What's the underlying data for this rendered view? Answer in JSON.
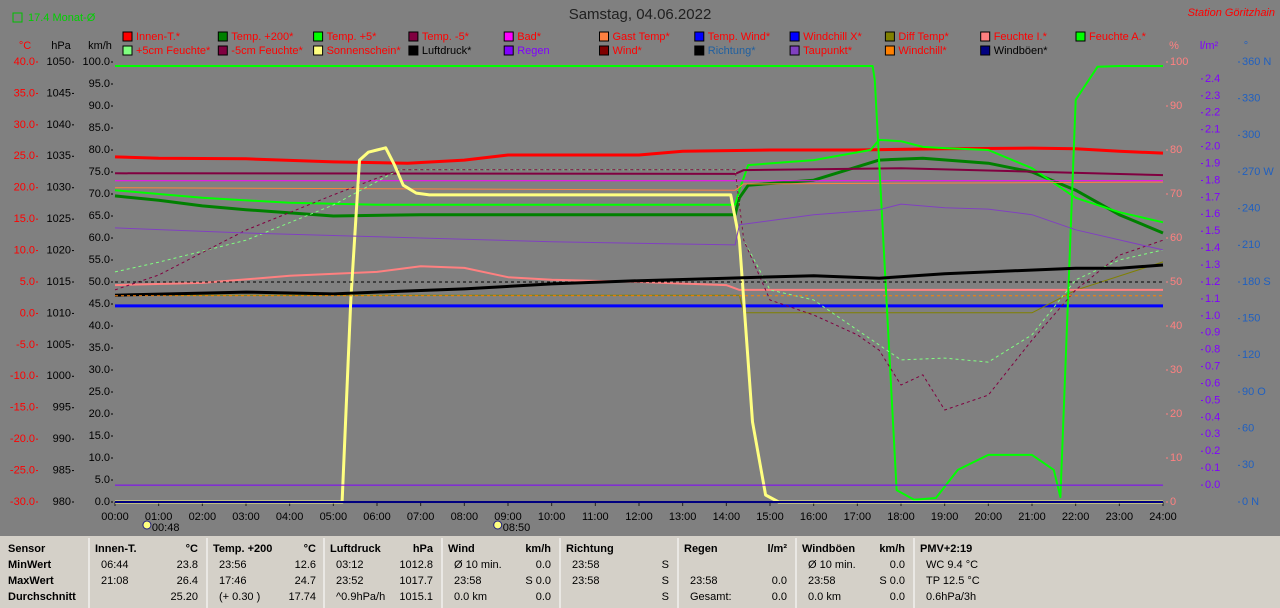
{
  "chart_data": {
    "type": "line",
    "title": "Samstag, 04.06.2022",
    "station": "Station Göritzhain",
    "month_average": "17.4 Monat-Ø",
    "xlim": [
      0,
      24
    ],
    "xticks": [
      {
        "value": 0,
        "label": "00:00"
      },
      {
        "value": 1,
        "label": "01:00"
      },
      {
        "value": 2,
        "label": "02:00"
      },
      {
        "value": 3,
        "label": "03:00"
      },
      {
        "value": 4,
        "label": "04:00"
      },
      {
        "value": 5,
        "label": "05:00"
      },
      {
        "value": 6,
        "label": "06:00"
      },
      {
        "value": 7,
        "label": "07:00"
      },
      {
        "value": 8,
        "label": "08:00"
      },
      {
        "value": 9,
        "label": "09:00"
      },
      {
        "value": 10,
        "label": "10:00"
      },
      {
        "value": 11,
        "label": "11:00"
      },
      {
        "value": 12,
        "label": "12:00"
      },
      {
        "value": 13,
        "label": "13:00"
      },
      {
        "value": 14,
        "label": "14:00"
      },
      {
        "value": 15,
        "label": "15:00"
      },
      {
        "value": 16,
        "label": "16:00"
      },
      {
        "value": 17,
        "label": "17:00"
      },
      {
        "value": 18,
        "label": "18:00"
      },
      {
        "value": 19,
        "label": "19:00"
      },
      {
        "value": 20,
        "label": "20:00"
      },
      {
        "value": 21,
        "label": "21:00"
      },
      {
        "value": 22,
        "label": "22:00"
      },
      {
        "value": 23,
        "label": "23:00"
      },
      {
        "value": 24,
        "label": "24:00"
      }
    ],
    "events": [
      {
        "value": 0.8,
        "label": "00:48"
      },
      {
        "value": 8.833,
        "label": "08:50"
      }
    ],
    "axes": [
      {
        "unit": "°C",
        "side": "left",
        "color": "#ff0000",
        "lim": [
          -30,
          40
        ],
        "ticks": [
          {
            "value": 40,
            "label": "40.0"
          },
          {
            "value": 35,
            "label": "35.0"
          },
          {
            "value": 30,
            "label": "30.0"
          },
          {
            "value": 25,
            "label": "25.0"
          },
          {
            "value": 20,
            "label": "20.0"
          },
          {
            "value": 15,
            "label": "15.0"
          },
          {
            "value": 10,
            "label": "10.0"
          },
          {
            "value": 5,
            "label": "5.0"
          },
          {
            "value": 0,
            "label": "0.0"
          },
          {
            "value": -5,
            "label": "-5.0"
          },
          {
            "value": -10,
            "label": "-10.0"
          },
          {
            "value": -15,
            "label": "-15.0"
          },
          {
            "value": -20,
            "label": "-20.0"
          },
          {
            "value": -25,
            "label": "-25.0"
          },
          {
            "value": -30,
            "label": "-30.0"
          }
        ]
      },
      {
        "unit": "hPa",
        "side": "left",
        "color": "#000000",
        "lim": [
          980,
          1050
        ],
        "ticks": [
          1050,
          1045,
          1040,
          1035,
          1030,
          1025,
          1020,
          1015,
          1010,
          1005,
          1000,
          995,
          990,
          985,
          980
        ]
      },
      {
        "unit": "km/h",
        "side": "left",
        "color": "#000000",
        "lim": [
          0,
          100
        ],
        "ticks": [
          {
            "value": 100,
            "label": "100.0"
          },
          {
            "value": 95,
            "label": "95.0"
          },
          {
            "value": 90,
            "label": "90.0"
          },
          {
            "value": 85,
            "label": "85.0"
          },
          {
            "value": 80,
            "label": "80.0"
          },
          {
            "value": 75,
            "label": "75.0"
          },
          {
            "value": 70,
            "label": "70.0"
          },
          {
            "value": 65,
            "label": "65.0"
          },
          {
            "value": 60,
            "label": "60.0"
          },
          {
            "value": 55,
            "label": "55.0"
          },
          {
            "value": 50,
            "label": "50.0"
          },
          {
            "value": 45,
            "label": "45.0"
          },
          {
            "value": 40,
            "label": "40.0"
          },
          {
            "value": 35,
            "label": "35.0"
          },
          {
            "value": 30,
            "label": "30.0"
          },
          {
            "value": 25,
            "label": "25.0"
          },
          {
            "value": 20,
            "label": "20.0"
          },
          {
            "value": 15,
            "label": "15.0"
          },
          {
            "value": 10,
            "label": "10.0"
          },
          {
            "value": 5,
            "label": "5.0"
          },
          {
            "value": 0,
            "label": "0.0"
          }
        ]
      },
      {
        "unit": "%",
        "side": "right",
        "color": "#ff8080",
        "lim": [
          0,
          100
        ],
        "ticks": [
          100,
          90,
          80,
          70,
          60,
          50,
          40,
          30,
          20,
          10,
          0
        ]
      },
      {
        "unit": "l/m²",
        "side": "right",
        "color": "#8000ff",
        "lim": [
          -0.1,
          2.5
        ],
        "ticks": [
          2.4,
          2.3,
          2.2,
          2.1,
          {
            "value": 2,
            "label": "2.0"
          },
          1.9,
          1.8,
          1.7,
          1.6,
          1.5,
          1.4,
          1.3,
          1.2,
          1.1,
          {
            "value": 1,
            "label": "1.0"
          },
          0.9,
          0.8,
          0.7,
          0.6,
          0.5,
          0.4,
          0.3,
          0.2,
          0.1,
          {
            "value": 0,
            "label": "0.0"
          }
        ]
      },
      {
        "unit": "°",
        "side": "right",
        "color": "#2060c0",
        "lim": [
          0,
          360
        ],
        "ticks": [
          {
            "value": 360,
            "label": "360 N"
          },
          330,
          300,
          {
            "value": 270,
            "label": "270 W"
          },
          240,
          210,
          {
            "value": 180,
            "label": "180 S"
          },
          150,
          120,
          {
            "value": 90,
            "label": "90 O"
          },
          60,
          30,
          {
            "value": 0,
            "label": "0 N"
          }
        ]
      }
    ],
    "series": [
      {
        "name": "Innen-T.*",
        "color": "#ff0000",
        "text_color": "#ff0000",
        "axis": "°C",
        "width": 3,
        "x": [
          0,
          1,
          3,
          5,
          6.7,
          8,
          9,
          12,
          13,
          15,
          17,
          19,
          21,
          22,
          23,
          24
        ],
        "values": [
          24.9,
          24.7,
          24.6,
          24.1,
          23.9,
          24.4,
          25.2,
          25.2,
          25.8,
          26.0,
          26.0,
          26.2,
          26.3,
          26.2,
          25.8,
          25.5
        ]
      },
      {
        "name": "Temp. +200*",
        "color": "#008000",
        "text_color": "#ff0000",
        "axis": "°C",
        "width": 3,
        "x": [
          0,
          1,
          2,
          3,
          5,
          7,
          10,
          14.2,
          14.3,
          14.5,
          16,
          17.5,
          18.5,
          20,
          21,
          22,
          23,
          24
        ],
        "values": [
          18.7,
          18.0,
          17.1,
          16.5,
          15.5,
          15.7,
          15.7,
          15.7,
          18.4,
          20.4,
          21.2,
          24.4,
          24.7,
          23.9,
          22.5,
          19.6,
          15.7,
          12.8
        ]
      },
      {
        "name": "Temp. +5*",
        "color": "#00ff00",
        "text_color": "#ff0000",
        "axis": "°C",
        "width": 2,
        "x": [
          0,
          2,
          4,
          6,
          10,
          14.2,
          14.3,
          14.5,
          16,
          17.3,
          17.5,
          18,
          18.5,
          19,
          20,
          21,
          22,
          23,
          24
        ],
        "values": [
          19.6,
          18.4,
          17.6,
          17.3,
          17.3,
          17.3,
          19.6,
          23.6,
          24.4,
          26.0,
          27.6,
          27.4,
          26.5,
          26.3,
          26.0,
          23.1,
          18.4,
          16.1,
          14.5
        ]
      },
      {
        "name": "Temp. -5*",
        "color": "#800040",
        "text_color": "#ff0000",
        "axis": "°C",
        "width": 2,
        "x": [
          0,
          14.2,
          14.4,
          18,
          24
        ],
        "values": [
          22.3,
          22.2,
          22.8,
          23.1,
          22.0
        ]
      },
      {
        "name": "Bad*",
        "color": "#ff00ff",
        "text_color": "#ff0000",
        "axis": "°C",
        "width": 1,
        "x": [
          0,
          24
        ],
        "values": [
          21.1,
          21.1
        ]
      },
      {
        "name": "Gast Temp*",
        "color": "#ff8040",
        "text_color": "#ff0000",
        "axis": "°C",
        "width": 1,
        "x": [
          0,
          14.2,
          14.4,
          24
        ],
        "values": [
          20.0,
          19.6,
          20.6,
          20.9
        ]
      },
      {
        "name": "Temp. Wind*",
        "color": "#0000ff",
        "text_color": "#ff0000",
        "axis": "°C",
        "width": 3,
        "x": [
          0,
          24
        ],
        "values": [
          1.2,
          1.2
        ]
      },
      {
        "name": "Windchill X*",
        "color": "#0000ff",
        "text_color": "#ff0000",
        "axis": "°C",
        "width": 1,
        "x": [
          0,
          24
        ],
        "values": [
          1.2,
          1.2
        ]
      },
      {
        "name": "Diff Temp*",
        "color": "#808000",
        "text_color": "#ff0000",
        "axis": "°C",
        "width": 1,
        "x": [
          0,
          14.3,
          14.4,
          21,
          22,
          24
        ],
        "values": [
          2.9,
          2.9,
          0.1,
          0.1,
          3.7,
          8.2
        ]
      },
      {
        "name": "Feuchte I.*",
        "color": "#ff8080",
        "text_color": "#ff0000",
        "axis": "%",
        "width": 2,
        "x": [
          0,
          2,
          4,
          6,
          7,
          8,
          9,
          10,
          12,
          14,
          14.3,
          24
        ],
        "values": [
          49.3,
          49.8,
          51.4,
          52.3,
          53.6,
          53.2,
          51.1,
          50.5,
          50.0,
          49.3,
          48.2,
          48.2
        ]
      },
      {
        "name": "Feuchte A.*",
        "color": "#00ff00",
        "text_color": "#ff0000",
        "axis": "%",
        "width": 2,
        "x": [
          0,
          17.35,
          17.4,
          17.9,
          18.3,
          18.8,
          19.3,
          20,
          21,
          21.5,
          21.65,
          22,
          22.5,
          23,
          24
        ],
        "values": [
          99.1,
          99.1,
          95.9,
          2.7,
          0.5,
          0.9,
          7.3,
          10.7,
          10.7,
          7.3,
          1.1,
          91.4,
          98.9,
          99.1,
          99.1
        ]
      },
      {
        "name": "+5cm Feuchte*",
        "color": "#80ff80",
        "text_color": "#ff0000",
        "axis": "%",
        "width": 1,
        "dashed": true,
        "x": [
          0,
          1,
          3,
          5,
          6.5,
          14.2,
          14.4,
          15,
          16,
          17,
          18,
          19,
          20,
          21,
          22,
          23,
          24
        ],
        "values": [
          52.3,
          54.5,
          59.5,
          67.5,
          75.5,
          75.5,
          59.5,
          48.2,
          45.9,
          39.1,
          32.3,
          32.7,
          31.8,
          38.0,
          50.5,
          55.0,
          57.3
        ]
      },
      {
        "name": "-5cm Feuchte*",
        "color": "#800040",
        "text_color": "#ff0000",
        "axis": "%",
        "width": 1,
        "dashed": true,
        "x": [
          0,
          1,
          3,
          5,
          6.5,
          14.2,
          14.4,
          15,
          16,
          17,
          17.5,
          18,
          18.5,
          19,
          20,
          21,
          22,
          23,
          24
        ],
        "values": [
          48.2,
          51.6,
          61.8,
          69.8,
          75.5,
          75.5,
          59.5,
          45.9,
          42.5,
          38.0,
          34.5,
          26.6,
          28.9,
          20.9,
          24.3,
          36.8,
          48.2,
          56.1,
          59.5
        ]
      },
      {
        "name": "Sonnenschein*",
        "color": "#ffff80",
        "text_color": "#ff0000",
        "axis": "%",
        "width": 3,
        "x": [
          0,
          5.2,
          5.4,
          5.6,
          5.8,
          6.0,
          6.2,
          6.4,
          6.6,
          6.9,
          7.2,
          14.1,
          14.3,
          14.6,
          14.9,
          15.2,
          24
        ],
        "values": [
          0,
          0,
          45.9,
          77.7,
          79.5,
          80.0,
          80.5,
          76.6,
          72.0,
          70.2,
          69.8,
          69.8,
          59.5,
          18.2,
          1.6,
          0,
          0
        ]
      },
      {
        "name": "Luftdruck*",
        "color": "#000000",
        "text_color": "#000000",
        "axis": "hPa",
        "width": 3,
        "x": [
          0,
          3,
          5,
          6,
          8,
          10,
          12,
          14,
          16,
          17.5,
          19,
          20,
          22,
          23,
          24
        ],
        "values": [
          1012.9,
          1013.4,
          1013.1,
          1013.4,
          1013.9,
          1014.7,
          1015.2,
          1015.6,
          1016.0,
          1015.6,
          1016.3,
          1016.6,
          1017.2,
          1017.2,
          1017.7
        ]
      },
      {
        "name": "Regen",
        "color": "#8000ff",
        "text_color": "#8000ff",
        "axis": "l/m²",
        "width": 1,
        "x": [
          0,
          24
        ],
        "values": [
          0,
          0
        ]
      },
      {
        "name": "Wind*",
        "color": "#800000",
        "text_color": "#ff0000",
        "axis": "km/h",
        "width": 2,
        "x": [
          0,
          24
        ],
        "values": [
          0,
          0
        ]
      },
      {
        "name": "Richtung*",
        "color": "#000000",
        "text_color": "#2060a0",
        "axis": "°",
        "width": 1,
        "dashed": true,
        "x": [
          0,
          24
        ],
        "values": [
          180,
          180
        ]
      },
      {
        "name": "Taupunkt*",
        "color": "#8040c0",
        "text_color": "#ff0000",
        "axis": "°C",
        "width": 1,
        "x": [
          0,
          3,
          6,
          10,
          14.2,
          14.3,
          16,
          17.5,
          18,
          19,
          20,
          21,
          22,
          23,
          24
        ],
        "values": [
          13.6,
          12.8,
          12.2,
          11.4,
          10.9,
          14.1,
          15.7,
          16.5,
          17.4,
          16.8,
          16.6,
          15.7,
          13.3,
          11.7,
          10.1
        ]
      },
      {
        "name": "Windchill*",
        "color": "#ff8000",
        "text_color": "#ff0000",
        "axis": "°C",
        "width": 1,
        "dashed": true,
        "x": [
          0,
          24
        ],
        "values": [
          2.8,
          2.8
        ]
      },
      {
        "name": "Windböen*",
        "color": "#000080",
        "text_color": "#000000",
        "axis": "km/h",
        "width": 2,
        "x": [
          0,
          24
        ],
        "values": [
          0,
          0
        ]
      }
    ]
  },
  "stats": {
    "row_labels": [
      "Sensor",
      "MinWert",
      "MaxWert",
      "Durchschnitt"
    ],
    "groups": [
      {
        "title": "Innen-T.",
        "unit": "°C",
        "cells": [
          [
            "06:44",
            "23.8"
          ],
          [
            "21:08",
            "26.4"
          ],
          [
            null,
            "25.20"
          ]
        ]
      },
      {
        "title": "Temp. +200",
        "unit": "°C",
        "cells": [
          [
            "23:56",
            "12.6"
          ],
          [
            "17:46",
            "24.7"
          ],
          [
            "(+ 0.30 )",
            "17.74"
          ]
        ]
      },
      {
        "title": "Luftdruck",
        "unit": "hPa",
        "cells": [
          [
            "03:12",
            "1012.8"
          ],
          [
            "23:52",
            "1017.7"
          ],
          [
            "^0.9hPa/h",
            "1015.1"
          ]
        ]
      },
      {
        "title": "Wind",
        "unit": "km/h",
        "cells": [
          [
            "Ø 10 min.",
            "0.0"
          ],
          [
            "23:58",
            "S 0.0"
          ],
          [
            "0.0 km",
            "0.0"
          ]
        ]
      },
      {
        "title": "Richtung",
        "cells": [
          [
            "23:58",
            "S"
          ],
          [
            "23:58",
            "S"
          ],
          [
            null,
            "S"
          ]
        ]
      },
      {
        "title": "Regen",
        "unit": "l/m²",
        "cells": [
          [
            null,
            null
          ],
          [
            "23:58",
            "0.0"
          ],
          [
            "Gesamt:",
            "0.0"
          ]
        ]
      },
      {
        "title": "Windböen",
        "unit": "km/h",
        "cells": [
          [
            "Ø 10 min.",
            "0.0"
          ],
          [
            "23:58",
            "S 0.0"
          ],
          [
            "0.0 km",
            "0.0"
          ]
        ]
      },
      {
        "title": "PMV+2:19",
        "cells": [
          [
            "WC 9.4 °C",
            null
          ],
          [
            "TP 12.5 °C",
            null
          ],
          [
            "0.6hPa/3h",
            null
          ]
        ]
      }
    ]
  }
}
